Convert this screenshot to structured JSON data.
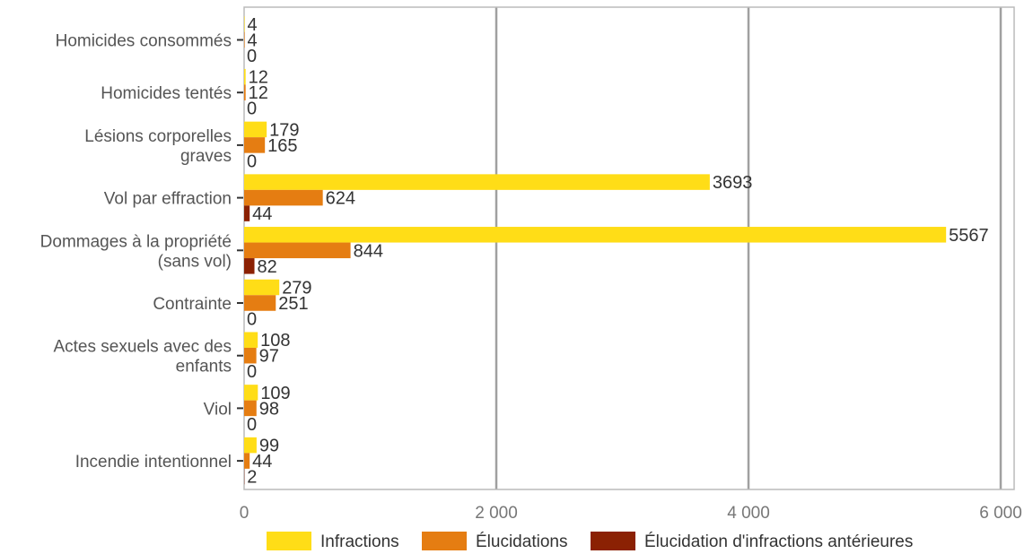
{
  "chart_data": {
    "type": "bar",
    "orientation": "horizontal",
    "categories": [
      [
        "Homicides consommés"
      ],
      [
        "Homicides tentés"
      ],
      [
        "Lésions corporelles",
        "graves"
      ],
      [
        "Vol par effraction"
      ],
      [
        "Dommages à la propriété",
        "(sans vol)"
      ],
      [
        "Contrainte"
      ],
      [
        "Actes sexuels avec des",
        "enfants"
      ],
      [
        "Viol"
      ],
      [
        "Incendie intentionnel"
      ]
    ],
    "series": [
      {
        "name": "Infractions",
        "color": "#FFDD17",
        "values": [
          4,
          12,
          179,
          3693,
          5567,
          279,
          108,
          109,
          99
        ]
      },
      {
        "name": "Élucidations",
        "color": "#E57D12",
        "values": [
          4,
          12,
          165,
          624,
          844,
          251,
          97,
          98,
          44
        ]
      },
      {
        "name": "Élucidation d'infractions antérieures",
        "color": "#8B2103",
        "values": [
          0,
          0,
          0,
          44,
          82,
          0,
          0,
          0,
          2
        ]
      }
    ],
    "xlim": [
      0,
      6000
    ],
    "xticks": [
      0,
      2000,
      4000,
      6000
    ],
    "xtick_labels": [
      "0",
      "2 000",
      "4 000",
      "6 000"
    ],
    "grid": true,
    "legend_position": "bottom"
  }
}
